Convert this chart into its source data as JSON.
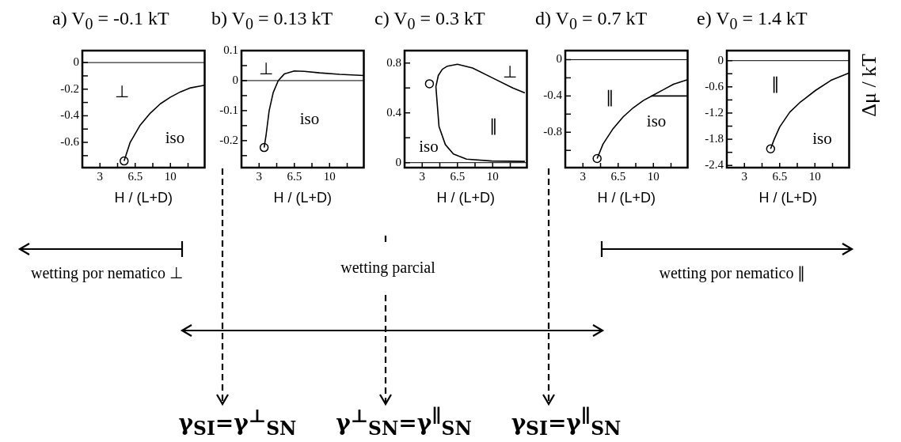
{
  "chart_data": [
    {
      "type": "line",
      "title": "a) V$_{0}$ = -0.1 kT",
      "xlabel": "H / (L+D)",
      "xlim": [
        1.25,
        13.4
      ],
      "xticks": [
        3,
        {
          "value": 4.75,
          "label": null
        },
        6.5,
        {
          "value": 8.25,
          "label": null
        },
        10,
        {
          "value": 11.75,
          "label": null
        }
      ],
      "ylim": [
        -0.79,
        0.09
      ],
      "yticks": [
        0,
        {
          "value": -0.1,
          "label": null
        },
        -0.2,
        {
          "value": -0.3,
          "label": null
        },
        -0.4,
        {
          "value": -0.5,
          "label": null
        },
        -0.6,
        {
          "value": -0.7,
          "label": null
        }
      ],
      "grid": false,
      "legend": false,
      "series": [
        {
          "type": "line",
          "color": "#000000",
          "marker": "none",
          "x": [
            5.4,
            6,
            7,
            8,
            9,
            10,
            11,
            12,
            13.4
          ],
          "values": [
            -0.74,
            -0.6,
            -0.47,
            -0.38,
            -0.31,
            -0.26,
            -0.22,
            -0.19,
            -0.17
          ]
        },
        {
          "type": "scatter",
          "color": "#000000",
          "marker": "circle",
          "x": [
            5.4
          ],
          "values": [
            -0.74
          ]
        }
      ],
      "ref_lines": [
        {
          "axis": "y",
          "value": 0,
          "color": "#000000"
        }
      ],
      "annotations": [
        "⊥",
        "iso"
      ]
    },
    {
      "type": "line",
      "title": "b) V$_{0}$ = 0.13 kT",
      "xlabel": "H / (L+D)",
      "xlim": [
        1.25,
        13.4
      ],
      "xticks": [
        3,
        {
          "value": 4.75,
          "label": null
        },
        6.5,
        {
          "value": 8.25,
          "label": null
        },
        10,
        {
          "value": 11.75,
          "label": null
        }
      ],
      "ylim": [
        -0.29,
        0.1
      ],
      "yticks": [
        0.1,
        {
          "value": 0.05,
          "label": null
        },
        0,
        {
          "value": -0.05,
          "label": null
        },
        -0.1,
        {
          "value": -0.15,
          "label": null
        },
        -0.2,
        {
          "value": -0.25,
          "label": null
        }
      ],
      "grid": false,
      "legend": false,
      "series": [
        {
          "type": "line",
          "color": "#000000",
          "marker": "none",
          "x": [
            3.5,
            3.7,
            4,
            4.4,
            4.9,
            5.5,
            6.5,
            7.5,
            9,
            11,
            13.4
          ],
          "values": [
            -0.223,
            -0.18,
            -0.1,
            -0.04,
            0,
            0.022,
            0.032,
            0.031,
            0.026,
            0.021,
            0.017
          ]
        },
        {
          "type": "scatter",
          "color": "#000000",
          "marker": "circle",
          "x": [
            3.5
          ],
          "values": [
            -0.223
          ]
        }
      ],
      "ref_lines": [
        {
          "axis": "y",
          "value": 0,
          "color": "#000000"
        }
      ],
      "annotations": [
        "⊥",
        "iso"
      ]
    },
    {
      "type": "line",
      "title": "c) V$_{0}$ = 0.3 kT",
      "xlabel": "H / (L+D)",
      "xlim": [
        1.25,
        13.4
      ],
      "xticks": [
        3,
        {
          "value": 4.75,
          "label": null
        },
        6.5,
        {
          "value": 8.25,
          "label": null
        },
        10,
        {
          "value": 11.75,
          "label": null
        }
      ],
      "ylim": [
        -0.04,
        0.9
      ],
      "yticks": [
        0,
        {
          "value": 0.2,
          "label": null
        },
        0.4,
        {
          "value": 0.6,
          "label": null
        },
        0.8
      ],
      "grid": false,
      "legend": false,
      "series": [
        {
          "type": "line",
          "color": "#000000",
          "marker": "none",
          "x": [
            13.2,
            12,
            10,
            8,
            6.5,
            5.5,
            5,
            4.6,
            4.36,
            4.67,
            5.3,
            6.1,
            7.4,
            9.9,
            13.2
          ],
          "values": [
            0.56,
            0.6,
            0.68,
            0.76,
            0.79,
            0.775,
            0.75,
            0.7,
            0.61,
            0.29,
            0.145,
            0.07,
            0.028,
            0.013,
            0.01
          ]
        },
        {
          "type": "scatter",
          "color": "#000000",
          "marker": "circle",
          "x": [
            3.72
          ],
          "values": [
            0.634
          ]
        }
      ],
      "ref_lines": [
        {
          "axis": "y",
          "value": 0,
          "color": "#000000"
        }
      ],
      "annotations": [
        "⊥",
        "∥",
        "iso"
      ]
    },
    {
      "type": "line",
      "title": "d) V$_{0}$ = 0.7 kT",
      "xlabel": "H / (L+D)",
      "xlim": [
        1.25,
        13.4
      ],
      "xticks": [
        3,
        {
          "value": 4.75,
          "label": null
        },
        6.5,
        {
          "value": 8.25,
          "label": null
        },
        10,
        {
          "value": 11.75,
          "label": null
        }
      ],
      "ylim": [
        -1.19,
        0.1
      ],
      "yticks": [
        0,
        {
          "value": -0.2,
          "label": null
        },
        -0.4,
        {
          "value": -0.6,
          "label": null
        },
        -0.8,
        {
          "value": -1.0,
          "label": null
        }
      ],
      "grid": false,
      "legend": false,
      "series": [
        {
          "type": "line",
          "color": "#000000",
          "marker": "none",
          "x": [
            4.41,
            5,
            6,
            7,
            8,
            9,
            10,
            11,
            12,
            13.4
          ],
          "values": [
            -1.09,
            -0.93,
            -0.76,
            -0.63,
            -0.53,
            -0.45,
            -0.39,
            -0.33,
            -0.27,
            -0.22
          ]
        },
        {
          "type": "line",
          "color": "#000000",
          "marker": "none",
          "x": [
            9.8,
            13.4
          ],
          "values": [
            -0.4,
            -0.4
          ]
        },
        {
          "type": "scatter",
          "color": "#000000",
          "marker": "circle",
          "x": [
            4.41
          ],
          "values": [
            -1.09
          ]
        }
      ],
      "ref_lines": [
        {
          "axis": "y",
          "value": 0,
          "color": "#000000"
        }
      ],
      "annotations": [
        "∥",
        "iso"
      ]
    },
    {
      "type": "line",
      "title": "e) V$_{0}$ = 1.4 kT",
      "xlabel": "H / (L+D)",
      "ylabel": "Δμ / kT",
      "xlim": [
        1.25,
        13.4
      ],
      "xticks": [
        3,
        {
          "value": 4.75,
          "label": null
        },
        6.5,
        {
          "value": 8.25,
          "label": null
        },
        10,
        {
          "value": 11.75,
          "label": null
        }
      ],
      "ylim": [
        -2.45,
        0.23
      ],
      "yticks": [
        0,
        {
          "value": -0.3,
          "label": null
        },
        -0.6,
        {
          "value": -0.9,
          "label": null
        },
        -1.2,
        {
          "value": -1.5,
          "label": null
        },
        -1.8,
        {
          "value": -2.1,
          "label": null
        },
        -2.4
      ],
      "grid": false,
      "legend": false,
      "series": [
        {
          "type": "line",
          "color": "#000000",
          "marker": "none",
          "x": [
            5.6,
            5.96,
            6.5,
            7.5,
            8.5,
            10.07,
            11.6,
            13.4
          ],
          "values": [
            -2.02,
            -1.8,
            -1.52,
            -1.18,
            -0.96,
            -0.68,
            -0.45,
            -0.28
          ]
        },
        {
          "type": "scatter",
          "color": "#000000",
          "marker": "circle",
          "x": [
            5.6
          ],
          "values": [
            -2.02
          ]
        }
      ],
      "ref_lines": [
        {
          "axis": "y",
          "value": 0,
          "color": "#000000"
        }
      ],
      "annotations": [
        "∥",
        "iso"
      ]
    },
    {
      "type": "other",
      "annotations": [
        "wetting por nematico ⊥",
        "wetting parcial",
        "wetting por nematico ∥",
        "γ$_{SI}$=γ$^{⊥}$$_{SN}$",
        "γ$^{⊥}$$_{SN}$=γ$^{∥}$$_{SN}$",
        "γ$_{SI}$=γ$^{∥}$$_{SN}$"
      ]
    }
  ]
}
